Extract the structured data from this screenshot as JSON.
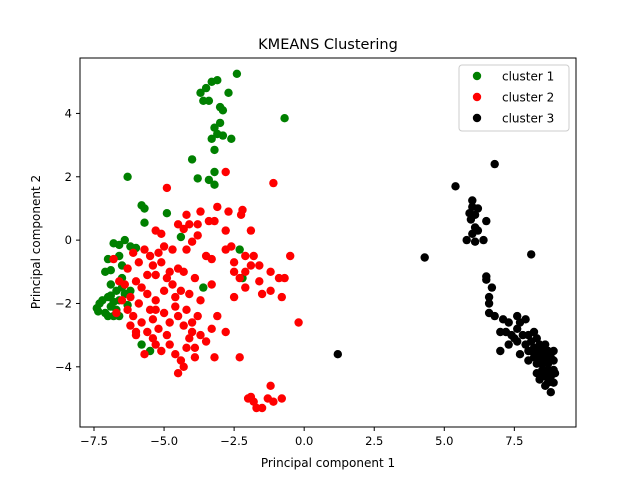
{
  "chart_data": {
    "type": "scatter",
    "title": "KMEANS Clustering",
    "xlabel": "Principal component 1",
    "ylabel": "Principal component 2",
    "xlim": [
      -8.0,
      9.7
    ],
    "ylim": [
      -5.9,
      5.75
    ],
    "xticks": [
      -7.5,
      -5.0,
      -2.5,
      0.0,
      2.5,
      5.0,
      7.5
    ],
    "xtick_labels": [
      "−7.5",
      "−5.0",
      "−2.5",
      "0.0",
      "2.5",
      "5.0",
      "7.5"
    ],
    "yticks": [
      -4,
      -2,
      0,
      2,
      4
    ],
    "ytick_labels": [
      "−4",
      "−2",
      "0",
      "2",
      "4"
    ],
    "grid": false,
    "legend": "top-right",
    "series": [
      {
        "name": "cluster 1",
        "color": "#008000",
        "points": [
          [
            -3.5,
            4.8
          ],
          [
            -3.3,
            5.0
          ],
          [
            -3.1,
            5.05
          ],
          [
            -2.7,
            4.65
          ],
          [
            -2.4,
            5.25
          ],
          [
            -3.4,
            4.4
          ],
          [
            -3.6,
            4.4
          ],
          [
            -3.7,
            4.65
          ],
          [
            -3.0,
            4.2
          ],
          [
            -2.9,
            4.1
          ],
          [
            -3.0,
            3.7
          ],
          [
            -3.2,
            3.55
          ],
          [
            -3.1,
            3.35
          ],
          [
            -2.9,
            3.3
          ],
          [
            -3.3,
            3.2
          ],
          [
            -2.6,
            3.2
          ],
          [
            -0.7,
            3.85
          ],
          [
            -3.2,
            2.85
          ],
          [
            -4.0,
            2.55
          ],
          [
            -3.2,
            2.15
          ],
          [
            -3.4,
            1.9
          ],
          [
            -3.8,
            1.95
          ],
          [
            -3.2,
            1.75
          ],
          [
            -6.3,
            2.0
          ],
          [
            -5.8,
            1.1
          ],
          [
            -5.7,
            1.0
          ],
          [
            -5.7,
            0.55
          ],
          [
            -4.9,
            0.85
          ],
          [
            -4.4,
            0.1
          ],
          [
            -2.3,
            -0.3
          ],
          [
            -6.4,
            0.0
          ],
          [
            -6.8,
            -0.1
          ],
          [
            -6.6,
            -0.15
          ],
          [
            -6.2,
            -0.2
          ],
          [
            -6.0,
            -0.25
          ],
          [
            -7.0,
            -0.6
          ],
          [
            -7.1,
            -1.0
          ],
          [
            -6.9,
            -0.95
          ],
          [
            -6.6,
            -0.5
          ],
          [
            -6.5,
            -0.8
          ],
          [
            -6.9,
            -1.4
          ],
          [
            -6.7,
            -1.6
          ],
          [
            -7.0,
            -1.8
          ],
          [
            -6.8,
            -1.95
          ],
          [
            -7.2,
            -1.9
          ],
          [
            -7.3,
            -2.0
          ],
          [
            -7.4,
            -2.15
          ],
          [
            -7.35,
            -2.25
          ],
          [
            -7.1,
            -2.3
          ],
          [
            -6.9,
            -2.1
          ],
          [
            -6.7,
            -2.2
          ],
          [
            -6.6,
            -2.4
          ],
          [
            -6.8,
            -2.4
          ],
          [
            -6.5,
            -1.5
          ],
          [
            -6.4,
            -1.7
          ],
          [
            -6.6,
            -1.9
          ],
          [
            -7.0,
            -2.4
          ],
          [
            -6.9,
            -1.75
          ],
          [
            -6.3,
            -2.05
          ],
          [
            -6.2,
            -1.6
          ],
          [
            -5.8,
            -3.3
          ],
          [
            -3.6,
            -1.5
          ],
          [
            -2.2,
            -1.2
          ],
          [
            -5.5,
            -3.5
          ],
          [
            -6.5,
            -1.2
          ]
        ]
      },
      {
        "name": "cluster 2",
        "color": "#ff0000",
        "points": [
          [
            -4.9,
            1.65
          ],
          [
            -1.1,
            1.8
          ],
          [
            -2.8,
            2.15
          ],
          [
            -3.1,
            1.05
          ],
          [
            -2.2,
            0.95
          ],
          [
            -3.7,
            0.9
          ],
          [
            -2.7,
            0.9
          ],
          [
            -4.2,
            0.8
          ],
          [
            -3.4,
            0.6
          ],
          [
            -2.25,
            0.8
          ],
          [
            -3.2,
            0.6
          ],
          [
            -4.1,
            0.5
          ],
          [
            -3.8,
            0.5
          ],
          [
            -4.5,
            0.5
          ],
          [
            -4.3,
            0.35
          ],
          [
            -5.3,
            0.3
          ],
          [
            -2.8,
            0.3
          ],
          [
            -1.9,
            0.3
          ],
          [
            -5.1,
            0.2
          ],
          [
            -3.8,
            0.15
          ],
          [
            -4.0,
            -0.05
          ],
          [
            -2.6,
            -0.2
          ],
          [
            -2.8,
            -0.3
          ],
          [
            -2.1,
            -0.5
          ],
          [
            -3.5,
            -0.5
          ],
          [
            -0.5,
            -0.5
          ],
          [
            -1.8,
            -0.5
          ],
          [
            -3.3,
            -0.6
          ],
          [
            -2.5,
            -0.7
          ],
          [
            -1.9,
            -0.8
          ],
          [
            -1.6,
            -0.8
          ],
          [
            -2.1,
            -1.0
          ],
          [
            -2.5,
            -1.0
          ],
          [
            -1.2,
            -1.0
          ],
          [
            -2.3,
            -1.2
          ],
          [
            -0.9,
            -1.2
          ],
          [
            -0.7,
            -1.2
          ],
          [
            -1.6,
            -1.3
          ],
          [
            -3.3,
            -1.4
          ],
          [
            -2.1,
            -1.5
          ],
          [
            -1.2,
            -1.6
          ],
          [
            -0.8,
            -1.8
          ],
          [
            -2.5,
            -1.8
          ],
          [
            -1.5,
            -1.7
          ],
          [
            -3.1,
            -2.4
          ],
          [
            -0.2,
            -2.6
          ],
          [
            -2.3,
            -3.7
          ],
          [
            -2.0,
            -5.0
          ],
          [
            -1.9,
            -4.95
          ],
          [
            -1.8,
            -5.1
          ],
          [
            -1.7,
            -5.3
          ],
          [
            -1.5,
            -5.3
          ],
          [
            -1.3,
            -5.0
          ],
          [
            -1.1,
            -5.1
          ],
          [
            -0.8,
            -5.0
          ],
          [
            -1.2,
            -4.6
          ],
          [
            -4.5,
            -4.2
          ],
          [
            -4.3,
            -4.0
          ],
          [
            -3.9,
            -3.7
          ],
          [
            -3.2,
            -3.7
          ],
          [
            -3.5,
            -3.2
          ],
          [
            -3.7,
            -3.0
          ],
          [
            -3.3,
            -2.8
          ],
          [
            -2.8,
            -2.9
          ],
          [
            -4.0,
            -2.6
          ],
          [
            -3.8,
            -2.4
          ],
          [
            -4.6,
            -3.6
          ],
          [
            -5.1,
            -3.5
          ],
          [
            -4.8,
            -3.3
          ],
          [
            -4.2,
            -3.4
          ],
          [
            -3.9,
            -3.4
          ],
          [
            -5.4,
            -3.1
          ],
          [
            -5.7,
            -3.6
          ],
          [
            -6.8,
            -0.6
          ],
          [
            -6.3,
            -0.9
          ],
          [
            -5.9,
            -0.7
          ],
          [
            -5.5,
            -0.5
          ],
          [
            -5.2,
            -0.4
          ],
          [
            -5.0,
            -0.2
          ],
          [
            -4.7,
            -0.3
          ],
          [
            -4.2,
            -0.3
          ],
          [
            -4.5,
            -0.9
          ],
          [
            -4.8,
            -1.0
          ],
          [
            -5.3,
            -1.1
          ],
          [
            -5.6,
            -1.1
          ],
          [
            -6.0,
            -1.3
          ],
          [
            -6.4,
            -1.4
          ],
          [
            -6.6,
            -1.3
          ],
          [
            -6.2,
            -1.8
          ],
          [
            -5.9,
            -2.0
          ],
          [
            -5.6,
            -1.7
          ],
          [
            -5.3,
            -1.9
          ],
          [
            -5.0,
            -1.6
          ],
          [
            -4.7,
            -1.4
          ],
          [
            -4.4,
            -1.6
          ],
          [
            -4.1,
            -1.7
          ],
          [
            -4.6,
            -2.1
          ],
          [
            -5.0,
            -2.3
          ],
          [
            -5.4,
            -2.5
          ],
          [
            -5.8,
            -2.6
          ],
          [
            -6.1,
            -2.4
          ],
          [
            -6.3,
            -2.2
          ],
          [
            -6.0,
            -2.9
          ],
          [
            -5.6,
            -2.9
          ],
          [
            -5.2,
            -2.8
          ],
          [
            -4.8,
            -2.6
          ],
          [
            -4.5,
            -2.4
          ],
          [
            -4.2,
            -2.2
          ],
          [
            -4.9,
            -3.0
          ],
          [
            -5.3,
            -3.3
          ],
          [
            -6.1,
            -0.4
          ],
          [
            -5.7,
            -0.3
          ],
          [
            -5.4,
            -0.8
          ],
          [
            -5.1,
            -0.7
          ],
          [
            -4.9,
            -1.2
          ],
          [
            -5.8,
            -1.5
          ],
          [
            -6.5,
            -1.9
          ],
          [
            -6.2,
            -2.7
          ],
          [
            -5.5,
            -2.2
          ],
          [
            -4.3,
            -2.7
          ],
          [
            -4.0,
            -2.9
          ],
          [
            -3.7,
            -1.9
          ],
          [
            -3.9,
            -1.2
          ],
          [
            -4.3,
            -1.0
          ],
          [
            -6.7,
            -2.3
          ],
          [
            -6.0,
            -3.0
          ],
          [
            -5.3,
            -2.2
          ],
          [
            -4.6,
            -1.8
          ],
          [
            -4.1,
            -3.1
          ],
          [
            -4.4,
            -3.8
          ]
        ]
      },
      {
        "name": "cluster 3",
        "color": "#000000",
        "points": [
          [
            1.2,
            -3.6
          ],
          [
            4.3,
            -0.55
          ],
          [
            5.4,
            1.7
          ],
          [
            6.8,
            2.4
          ],
          [
            6.0,
            1.25
          ],
          [
            6.0,
            1.05
          ],
          [
            6.2,
            1.0
          ],
          [
            5.9,
            0.85
          ],
          [
            6.1,
            0.8
          ],
          [
            5.95,
            0.65
          ],
          [
            6.5,
            0.6
          ],
          [
            6.1,
            0.4
          ],
          [
            6.2,
            0.3
          ],
          [
            6.0,
            0.2
          ],
          [
            6.1,
            -0.05
          ],
          [
            5.8,
            0.0
          ],
          [
            6.4,
            0.0
          ],
          [
            8.1,
            -0.45
          ],
          [
            6.5,
            -1.15
          ],
          [
            6.5,
            -1.25
          ],
          [
            6.7,
            -1.5
          ],
          [
            6.6,
            -1.8
          ],
          [
            6.6,
            -2.0
          ],
          [
            6.6,
            -2.3
          ],
          [
            6.8,
            -2.4
          ],
          [
            7.1,
            -2.5
          ],
          [
            7.3,
            -2.6
          ],
          [
            7.6,
            -2.4
          ],
          [
            7.0,
            -2.9
          ],
          [
            7.2,
            -2.9
          ],
          [
            7.4,
            -3.0
          ],
          [
            7.7,
            -2.6
          ],
          [
            7.9,
            -2.5
          ],
          [
            7.6,
            -2.8
          ],
          [
            7.8,
            -3.0
          ],
          [
            7.6,
            -3.2
          ],
          [
            7.9,
            -3.3
          ],
          [
            8.0,
            -3.0
          ],
          [
            8.2,
            -2.9
          ],
          [
            8.3,
            -3.1
          ],
          [
            8.1,
            -3.2
          ],
          [
            8.4,
            -3.3
          ],
          [
            8.6,
            -3.3
          ],
          [
            8.3,
            -3.5
          ],
          [
            8.5,
            -3.5
          ],
          [
            8.7,
            -3.5
          ],
          [
            8.2,
            -3.7
          ],
          [
            8.4,
            -3.7
          ],
          [
            8.6,
            -3.7
          ],
          [
            8.8,
            -3.7
          ],
          [
            8.3,
            -3.9
          ],
          [
            8.5,
            -3.9
          ],
          [
            8.7,
            -3.9
          ],
          [
            8.9,
            -3.8
          ],
          [
            8.5,
            -4.1
          ],
          [
            8.7,
            -4.1
          ],
          [
            8.9,
            -4.1
          ],
          [
            8.6,
            -4.3
          ],
          [
            8.8,
            -4.3
          ],
          [
            8.7,
            -4.5
          ],
          [
            8.8,
            -4.8
          ],
          [
            8.95,
            -4.2
          ],
          [
            8.9,
            -3.5
          ],
          [
            7.0,
            -3.5
          ],
          [
            7.3,
            -3.3
          ],
          [
            7.7,
            -3.6
          ],
          [
            8.0,
            -3.8
          ],
          [
            8.1,
            -3.5
          ],
          [
            8.3,
            -4.2
          ],
          [
            8.4,
            -4.4
          ],
          [
            8.6,
            -4.6
          ],
          [
            8.9,
            -4.5
          ],
          [
            8.2,
            -3.4
          ],
          [
            7.5,
            -3.1
          ],
          [
            8.0,
            -3.5
          ],
          [
            8.45,
            -4.2
          ]
        ]
      }
    ]
  }
}
